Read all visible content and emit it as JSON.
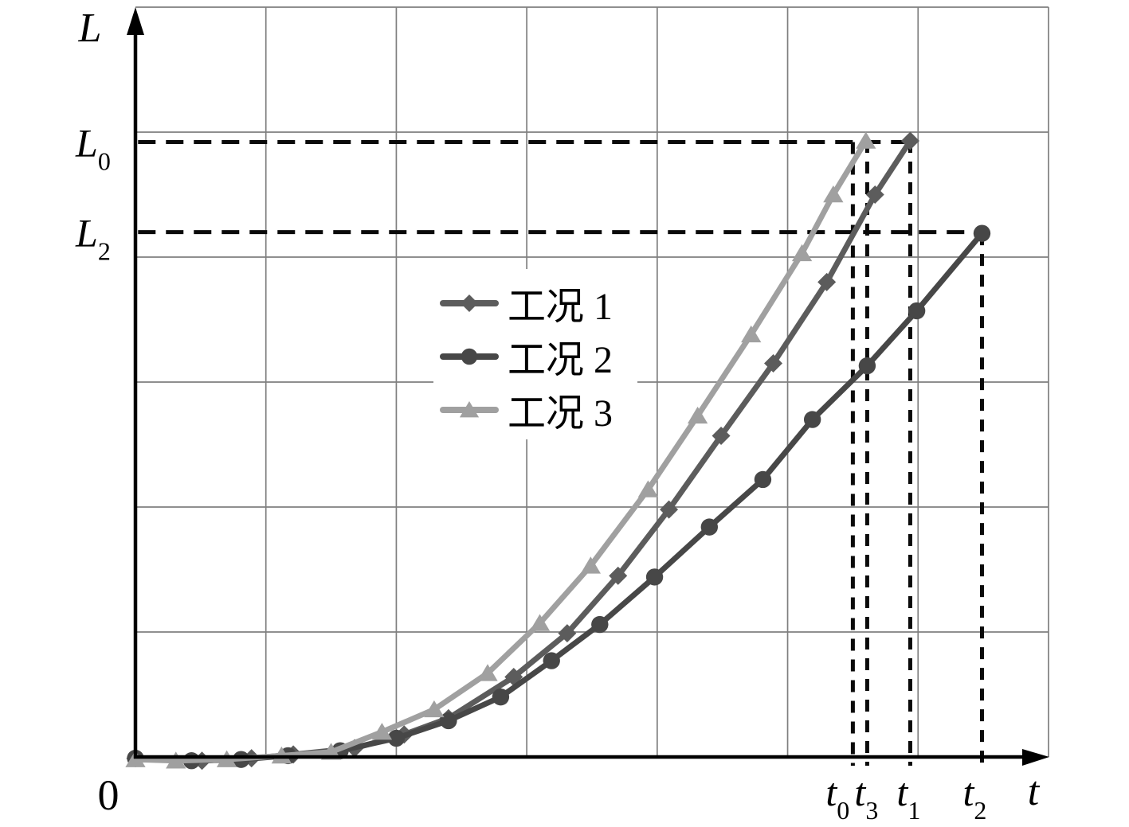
{
  "chart_data": {
    "type": "line",
    "title": "",
    "xlabel": "t",
    "ylabel": "L",
    "origin_label": "0",
    "x_range": [
      0,
      7
    ],
    "y_range": [
      0,
      6
    ],
    "grid": true,
    "grid_step": 1,
    "legend_position": "inside middle-left",
    "colors": {
      "background": "#ffffff",
      "axis": "#000000",
      "grid": "#7f7f7f",
      "reference_dash": "#0a0a0a"
    },
    "series": [
      {
        "name": "工况 1",
        "marker": "diamond",
        "color": "#5c5c5c",
        "points": [
          [
            0,
            -0.01
          ],
          [
            0.51,
            -0.03
          ],
          [
            0.89,
            -0.01
          ],
          [
            1.21,
            0.02
          ],
          [
            1.68,
            0.07
          ],
          [
            2.06,
            0.18
          ],
          [
            2.4,
            0.31
          ],
          [
            2.9,
            0.64
          ],
          [
            3.31,
            0.99
          ],
          [
            3.7,
            1.45
          ],
          [
            4.09,
            1.98
          ],
          [
            4.49,
            2.57
          ],
          [
            4.89,
            3.15
          ],
          [
            5.3,
            3.8
          ],
          [
            5.67,
            4.5
          ],
          [
            5.94,
            4.93
          ]
        ]
      },
      {
        "name": "工况 2",
        "marker": "circle",
        "color": "#474747",
        "points": [
          [
            0,
            -0.01
          ],
          [
            0.43,
            -0.03
          ],
          [
            0.81,
            -0.02
          ],
          [
            1.17,
            0.01
          ],
          [
            1.57,
            0.05
          ],
          [
            2.0,
            0.15
          ],
          [
            2.4,
            0.29
          ],
          [
            2.8,
            0.48
          ],
          [
            3.19,
            0.77
          ],
          [
            3.56,
            1.06
          ],
          [
            3.98,
            1.44
          ],
          [
            4.4,
            1.84
          ],
          [
            4.81,
            2.22
          ],
          [
            5.19,
            2.7
          ],
          [
            5.61,
            3.13
          ],
          [
            5.99,
            3.57
          ],
          [
            6.49,
            4.19
          ]
        ]
      },
      {
        "name": "工况 3",
        "marker": "triangle",
        "color": "#a0a0a0",
        "points": [
          [
            0,
            -0.02
          ],
          [
            0.31,
            -0.03
          ],
          [
            0.7,
            -0.02
          ],
          [
            1.12,
            0.01
          ],
          [
            1.5,
            0.04
          ],
          [
            1.89,
            0.2
          ],
          [
            2.29,
            0.38
          ],
          [
            2.7,
            0.67
          ],
          [
            3.1,
            1.07
          ],
          [
            3.49,
            1.53
          ],
          [
            3.93,
            2.14
          ],
          [
            4.31,
            2.73
          ],
          [
            4.72,
            3.38
          ],
          [
            5.11,
            4.03
          ],
          [
            5.35,
            4.5
          ],
          [
            5.6,
            4.93
          ]
        ]
      }
    ],
    "reference_lines_horizontal": [
      {
        "label": "L",
        "sub": "0",
        "L": 4.92,
        "t_from": 0.02,
        "t_to": 5.97
      },
      {
        "label": "L",
        "sub": "2",
        "L": 4.2,
        "t_from": 0.02,
        "t_to": 6.46
      }
    ],
    "reference_lines_vertical": [
      {
        "label": "t",
        "sub": "0",
        "t": 5.5,
        "L_top": 4.92,
        "label_dx": -10
      },
      {
        "label": "t",
        "sub": "3",
        "t": 5.61,
        "L_top": 4.93,
        "label_dx": 8
      },
      {
        "label": "t",
        "sub": "1",
        "t": 5.94,
        "L_top": 4.93,
        "label_dx": 7
      },
      {
        "label": "t",
        "sub": "2",
        "t": 6.49,
        "L_top": 4.19,
        "label_dx": 0
      }
    ]
  }
}
